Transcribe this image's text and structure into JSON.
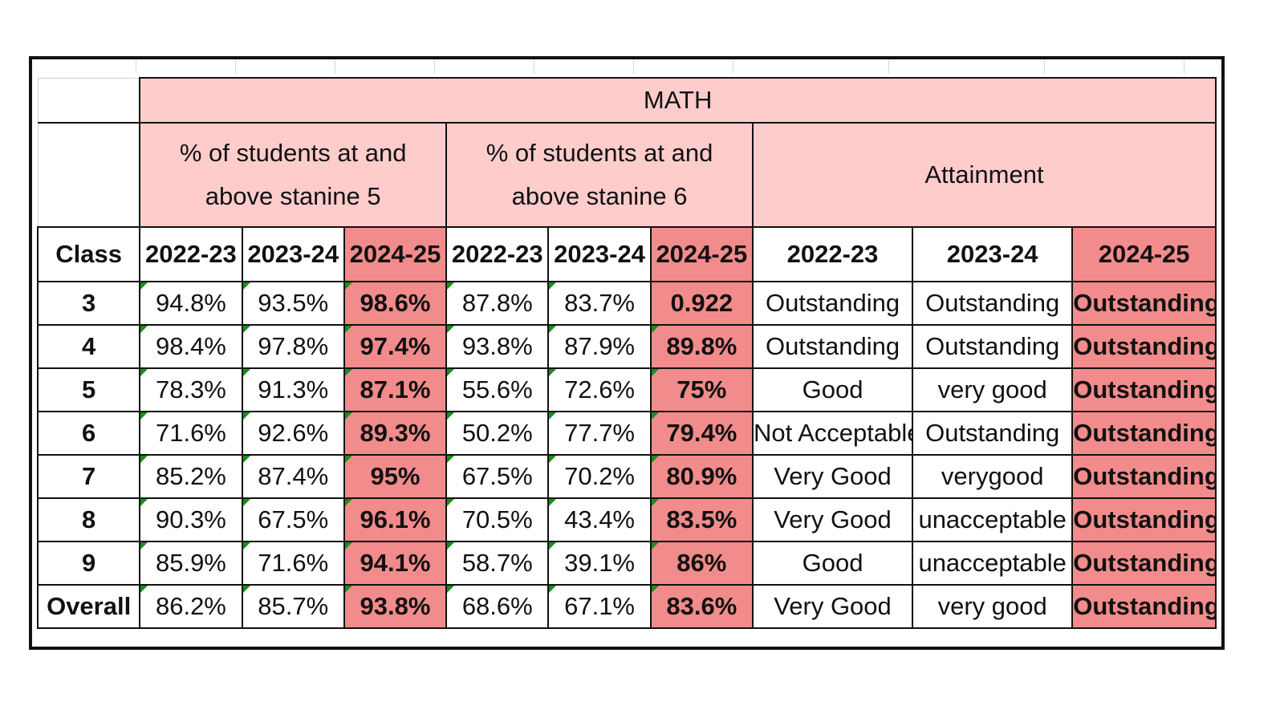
{
  "subject": "MATH",
  "groups": [
    {
      "label": "% of students at and above stanine 5"
    },
    {
      "label": "% of students at and above stanine 6"
    },
    {
      "label": "Attainment"
    }
  ],
  "class_header": "Class",
  "years": [
    "2022-23",
    "2023-24",
    "2024-25",
    "2022-23",
    "2023-24",
    "2024-25",
    "2022-23",
    "2023-24",
    "2024-25"
  ],
  "rows": [
    {
      "class": "3",
      "s5": [
        "94.8%",
        "93.5%",
        "98.6%"
      ],
      "s6": [
        "87.8%",
        "83.7%",
        "0.922"
      ],
      "att": [
        "Outstanding",
        "Outstanding",
        "Outstanding"
      ]
    },
    {
      "class": "4",
      "s5": [
        "98.4%",
        "97.8%",
        "97.4%"
      ],
      "s6": [
        "93.8%",
        "87.9%",
        "89.8%"
      ],
      "att": [
        "Outstanding",
        "Outstanding",
        "Outstanding"
      ]
    },
    {
      "class": "5",
      "s5": [
        "78.3%",
        "91.3%",
        "87.1%"
      ],
      "s6": [
        "55.6%",
        "72.6%",
        "75%"
      ],
      "att": [
        "Good",
        "very good",
        "Outstanding"
      ]
    },
    {
      "class": "6",
      "s5": [
        "71.6%",
        "92.6%",
        "89.3%"
      ],
      "s6": [
        "50.2%",
        "77.7%",
        "79.4%"
      ],
      "att": [
        "Not Acceptable",
        "Outstanding",
        "Outstanding"
      ]
    },
    {
      "class": "7",
      "s5": [
        "85.2%",
        "87.4%",
        "95%"
      ],
      "s6": [
        "67.5%",
        "70.2%",
        "80.9%"
      ],
      "att": [
        "Very Good",
        "verygood",
        "Outstanding"
      ]
    },
    {
      "class": "8",
      "s5": [
        "90.3%",
        "67.5%",
        "96.1%"
      ],
      "s6": [
        "70.5%",
        "43.4%",
        "83.5%"
      ],
      "att": [
        "Very Good",
        "unacceptable",
        "Outstanding"
      ]
    },
    {
      "class": "9",
      "s5": [
        "85.9%",
        "71.6%",
        "94.1%"
      ],
      "s6": [
        "58.7%",
        "39.1%",
        "86%"
      ],
      "att": [
        "Good",
        "unacceptable",
        "Outstanding"
      ]
    },
    {
      "class": "Overall",
      "s5": [
        "86.2%",
        "85.7%",
        "93.8%"
      ],
      "s6": [
        "68.6%",
        "67.1%",
        "83.6%"
      ],
      "att": [
        "Very Good",
        "very good",
        "Outstanding"
      ]
    }
  ],
  "colors": {
    "header_pink": "#ffcccc",
    "highlight_red": "#f28b8b",
    "flag_green": "#1a8f1a"
  }
}
